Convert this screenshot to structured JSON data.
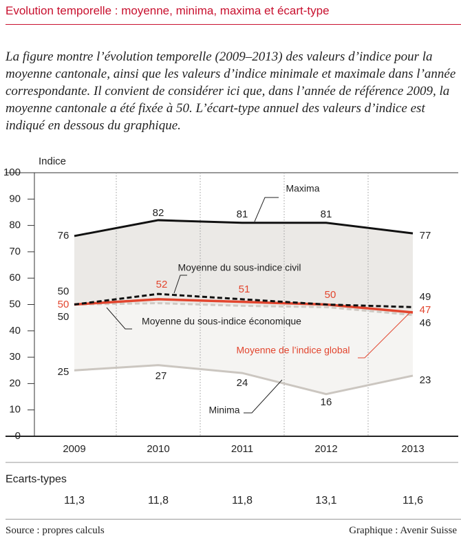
{
  "title": "Evolution temporelle : moyenne, minima, maxima et écart-type",
  "subtitle": "La figure montre l’évolution temporelle (2009–2013) des valeurs d’indice pour la moyenne cantonale, ainsi que les valeurs d’indice minimale et maximale dans l’année correspondante. Il convient de considérer ici que, dans l’année de référence 2009, la moyenne cantonale a été fixée à 50. L’écart-type annuel des valeurs d’indice est indiqué en dessous du graphique.",
  "footer": {
    "source": "Source : propres calculs",
    "credit": "Graphique : Avenir Suisse"
  },
  "std_dev": {
    "title": "Ecarts-types",
    "values": [
      "11,3",
      "11,8",
      "11,8",
      "13,1",
      "11,6"
    ]
  },
  "colors": {
    "title_red": "#c8102e",
    "global_line": "#e2452e",
    "band_fill": "#ebe9e6",
    "inner_fill": "#f5f4f2",
    "minima_line": "#cbc6c0",
    "eco_line": "#cfcac4"
  },
  "chart_data": {
    "type": "line",
    "title": "",
    "ylabel": "Indice",
    "xlabel": "",
    "categories": [
      "2009",
      "2010",
      "2011",
      "2012",
      "2013"
    ],
    "ylim": [
      0,
      100
    ],
    "yticks": [
      0,
      10,
      20,
      30,
      40,
      50,
      60,
      70,
      80,
      90,
      100
    ],
    "grid": "vertical dotted",
    "series": [
      {
        "name": "Maxima",
        "values": [
          76,
          82,
          81,
          81,
          77
        ],
        "labels": [
          "76",
          "82",
          "81",
          "81",
          "77"
        ]
      },
      {
        "name": "Moyenne du sous-indice civil",
        "values": [
          50,
          54,
          52,
          50,
          49
        ],
        "labels": [
          "50",
          "",
          "",
          "",
          "49"
        ]
      },
      {
        "name": "Moyenne de l’indice global",
        "values": [
          50,
          52,
          51,
          50,
          47
        ],
        "labels": [
          "50",
          "52",
          "51",
          "50",
          "47"
        ]
      },
      {
        "name": "Moyenne du sous-indice économique",
        "values": [
          50,
          50.5,
          49.5,
          49,
          46
        ],
        "labels": [
          "50",
          "",
          "",
          "",
          "46"
        ]
      },
      {
        "name": "Minima",
        "values": [
          25,
          27,
          24,
          16,
          23
        ],
        "labels": [
          "25",
          "27",
          "24",
          "16",
          "23"
        ]
      }
    ]
  }
}
